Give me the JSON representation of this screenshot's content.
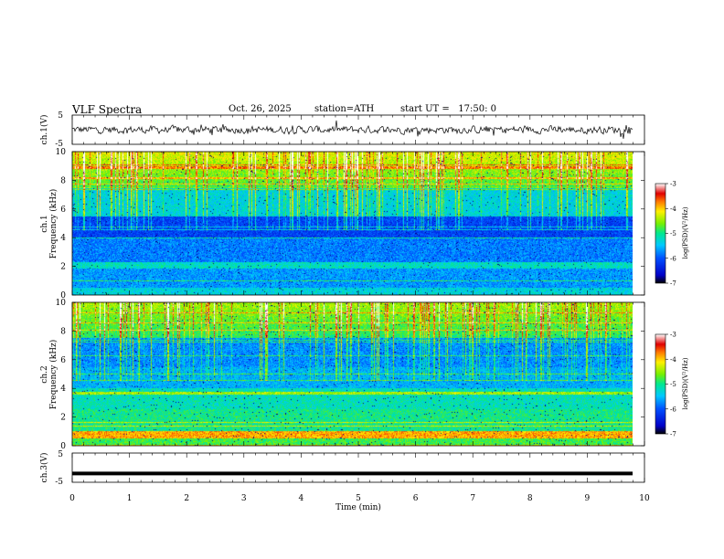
{
  "header": {
    "title": "VLF Spectra",
    "date": "Oct. 26, 2025",
    "station": "station=ATH",
    "start": "start UT =   17:50: 0"
  },
  "chart_data": [
    {
      "type": "line",
      "id": "ch1_waveform",
      "ylabel": "ch.1(V)",
      "ylim": [
        -5,
        5
      ],
      "y_ticks": [
        "5",
        "-5"
      ],
      "xlim": [
        0,
        10
      ],
      "note": "noisy waveform, amplitude approx -2.5..+2.5 V, data ends ~9.8 min"
    },
    {
      "type": "heatmap",
      "id": "ch1_spectrogram",
      "ylabel_line1": "ch.1",
      "ylabel_line2": "Frequency (kHz)",
      "ylim": [
        0,
        10
      ],
      "y_ticks": [
        "0",
        "2",
        "4",
        "6",
        "8",
        "10"
      ],
      "xlim": [
        0,
        10
      ],
      "colorbar": {
        "label": "log(PSD)(V²/Hz)",
        "range": [
          -7,
          -3
        ],
        "ticks": [
          "-3",
          "-4",
          "-5",
          "-6",
          "-7"
        ]
      }
    },
    {
      "type": "heatmap",
      "id": "ch2_spectrogram",
      "ylabel_line1": "ch.2",
      "ylabel_line2": "Frequency (kHz)",
      "ylim": [
        0,
        10
      ],
      "y_ticks": [
        "0",
        "2",
        "4",
        "6",
        "8",
        "10"
      ],
      "xlim": [
        0,
        10
      ],
      "colorbar": {
        "label": "log(PSD)(V²/Hz)",
        "range": [
          -7,
          -3
        ],
        "ticks": [
          "-3",
          "-4",
          "-5",
          "-6",
          "-7"
        ]
      }
    },
    {
      "type": "line",
      "id": "ch3_waveform",
      "ylabel": "ch.3(V)",
      "ylim": [
        -5,
        5
      ],
      "y_ticks": [
        "5",
        "-5"
      ],
      "xlim": [
        0,
        10
      ],
      "constant_value": -2,
      "xlabel": "Time (min)",
      "x_ticks": [
        "0",
        "1",
        "2",
        "3",
        "4",
        "5",
        "6",
        "7",
        "8",
        "9",
        "10"
      ]
    }
  ],
  "colors": {
    "waveform": "#000000",
    "axis": "#000000",
    "background": "#ffffff"
  }
}
